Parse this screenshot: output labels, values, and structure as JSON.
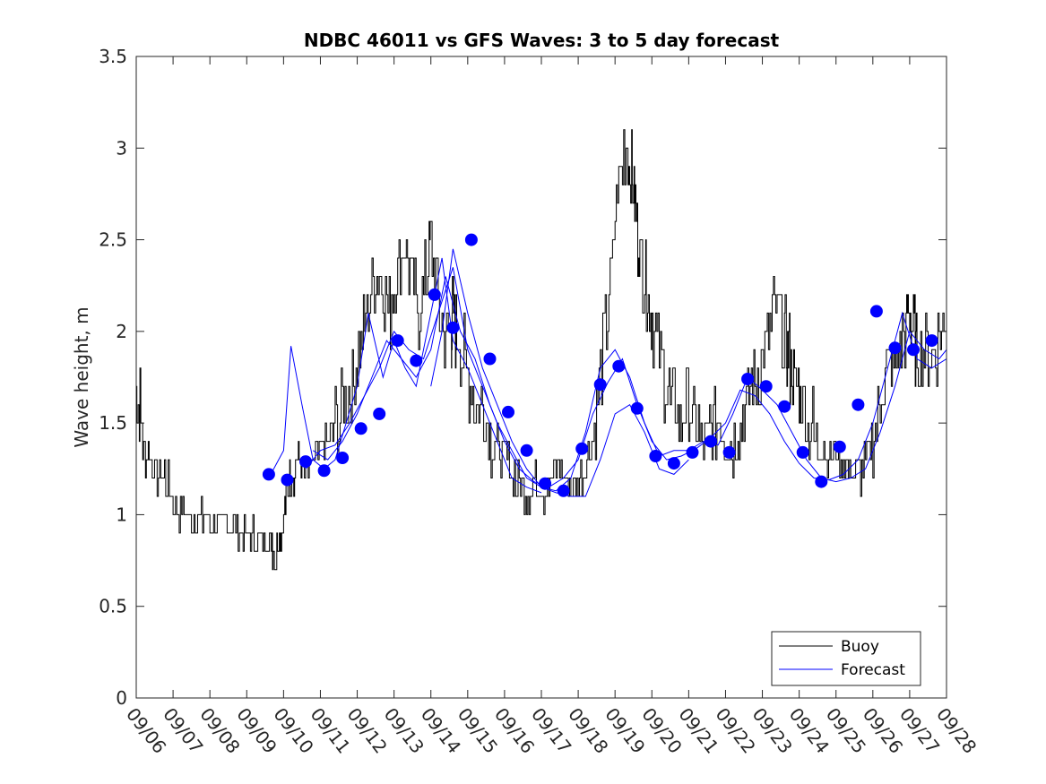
{
  "chart_data": {
    "type": "line",
    "title": "NDBC 46011 vs GFS Waves: 3 to 5 day forecast",
    "xlabel": "",
    "ylabel": "Wave height, m",
    "xlim": [
      0,
      22
    ],
    "ylim": [
      0,
      3.5
    ],
    "yticks": [
      0,
      0.5,
      1,
      1.5,
      2,
      2.5,
      3,
      3.5
    ],
    "ytick_labels": [
      "0",
      "0.5",
      "1",
      "1.5",
      "2",
      "2.5",
      "3",
      "3.5"
    ],
    "xtick_labels": [
      "09/06",
      "09/07",
      "09/08",
      "09/09",
      "09/10",
      "09/11",
      "09/12",
      "09/13",
      "09/14",
      "09/15",
      "09/16",
      "09/17",
      "09/18",
      "09/19",
      "09/20",
      "09/21",
      "09/22",
      "09/23",
      "09/24",
      "09/25",
      "09/26",
      "09/27",
      "09/28"
    ],
    "grid": false,
    "legend": {
      "location": "bottom-right",
      "entries": [
        "Buoy",
        "Forecast"
      ]
    },
    "colors": {
      "buoy": "#000000",
      "forecast": "#0000ff",
      "marker": "#0000ff"
    },
    "buoy": {
      "name": "Buoy",
      "x": [
        0,
        0.1,
        0.25,
        0.4,
        0.6,
        0.8,
        1.0,
        1.2,
        1.4,
        1.6,
        1.8,
        2.0,
        2.2,
        2.4,
        2.6,
        2.8,
        3.0,
        3.2,
        3.4,
        3.6,
        3.7,
        3.8,
        3.9,
        4.0,
        4.1,
        4.2,
        4.35,
        4.5,
        4.7,
        4.9,
        5.1,
        5.3,
        5.5,
        5.7,
        5.9,
        6.1,
        6.3,
        6.5,
        6.7,
        6.9,
        7.1,
        7.3,
        7.5,
        7.7,
        7.9,
        8.0,
        8.2,
        8.4,
        8.55,
        8.6,
        8.7,
        8.9,
        9.1,
        9.3,
        9.5,
        9.7,
        9.9,
        10.1,
        10.3,
        10.5,
        10.7,
        10.9,
        11.1,
        11.3,
        11.5,
        11.7,
        11.9,
        12.1,
        12.3,
        12.5,
        12.7,
        12.9,
        13.1,
        13.3,
        13.45,
        13.55,
        13.65,
        13.8,
        13.9,
        14.0,
        14.2,
        14.4,
        14.6,
        14.8,
        15.0,
        15.2,
        15.4,
        15.6,
        15.8,
        16.0,
        16.2,
        16.4,
        16.6,
        16.8,
        17.0,
        17.2,
        17.4,
        17.6,
        17.7,
        17.8,
        17.95,
        18.1,
        18.3,
        18.5,
        18.7,
        18.9,
        19.1,
        19.3,
        19.5,
        19.7,
        19.9,
        20.1,
        20.3,
        20.5,
        20.7,
        20.9,
        21.0,
        21.1,
        21.2,
        21.4,
        21.6,
        21.8,
        22.0
      ],
      "y": [
        1.7,
        1.6,
        1.3,
        1.3,
        1.2,
        1.2,
        1.1,
        1.0,
        1.0,
        0.95,
        0.95,
        0.95,
        0.9,
        0.95,
        0.95,
        0.9,
        0.9,
        0.85,
        0.85,
        0.85,
        0.85,
        0.75,
        0.9,
        0.95,
        1.1,
        1.2,
        1.25,
        1.25,
        1.2,
        1.3,
        1.35,
        1.4,
        1.5,
        1.6,
        1.7,
        1.9,
        2.1,
        2.3,
        2.3,
        2.1,
        2.3,
        2.5,
        2.2,
        2.1,
        2.3,
        2.5,
        2.2,
        2.0,
        2.0,
        2.1,
        2.0,
        1.9,
        1.7,
        1.6,
        1.55,
        1.4,
        1.35,
        1.3,
        1.2,
        1.15,
        1.1,
        1.2,
        1.15,
        1.2,
        1.3,
        1.2,
        1.1,
        1.2,
        1.3,
        1.5,
        1.9,
        2.2,
        2.8,
        3.0,
        2.9,
        2.7,
        2.5,
        2.3,
        2.2,
        2.1,
        1.9,
        1.7,
        1.6,
        1.5,
        1.6,
        1.5,
        1.4,
        1.45,
        1.5,
        1.45,
        1.4,
        1.5,
        1.6,
        1.7,
        1.8,
        2.0,
        2.1,
        2.0,
        1.9,
        1.8,
        1.7,
        1.6,
        1.5,
        1.4,
        1.35,
        1.3,
        1.3,
        1.25,
        1.2,
        1.2,
        1.3,
        1.5,
        1.7,
        1.8,
        1.85,
        2.0,
        2.1,
        2.0,
        1.9,
        1.85,
        1.9,
        1.95,
        2.0
      ]
    },
    "forecast_series": [
      {
        "name": "Forecast",
        "x": [
          3.6,
          4.0,
          4.2,
          4.5,
          4.8,
          5.1,
          5.4,
          5.7,
          6.0,
          6.3,
          6.7,
          7.0,
          7.3,
          7.6,
          8.0,
          8.3,
          8.6,
          9.0,
          9.4,
          9.8,
          10.2,
          10.6,
          11.0
        ],
        "y": [
          1.2,
          1.35,
          1.92,
          1.6,
          1.3,
          1.25,
          1.3,
          1.5,
          1.7,
          2.1,
          1.75,
          1.95,
          1.8,
          1.7,
          2.1,
          2.4,
          1.95,
          1.8,
          1.6,
          1.4,
          1.2,
          1.15,
          1.12
        ]
      },
      {
        "name": "Forecast",
        "x": [
          4.6,
          5.0,
          5.4,
          5.8,
          6.2,
          6.6,
          7.0,
          7.4,
          7.8,
          8.2,
          8.6,
          9.0,
          9.4,
          9.8,
          10.2,
          10.6,
          11.0,
          11.4,
          11.8,
          12.2,
          12.6,
          13.0,
          13.4,
          13.8,
          14.2,
          14.6,
          15.0,
          15.4,
          15.8,
          16.2,
          16.6,
          17.0,
          17.4,
          17.8,
          18.2,
          18.6,
          19.0,
          19.4,
          19.8,
          20.2,
          20.6,
          21.0,
          21.4,
          21.8,
          22.0
        ],
        "y": [
          1.25,
          1.35,
          1.38,
          1.5,
          1.65,
          1.8,
          2.0,
          1.9,
          1.85,
          2.1,
          2.35,
          1.9,
          1.7,
          1.5,
          1.35,
          1.2,
          1.15,
          1.13,
          1.2,
          1.45,
          1.8,
          1.9,
          1.75,
          1.5,
          1.32,
          1.35,
          1.35,
          1.4,
          1.38,
          1.55,
          1.75,
          1.68,
          1.6,
          1.45,
          1.3,
          1.2,
          1.18,
          1.2,
          1.25,
          1.45,
          1.7,
          2.0,
          1.9,
          1.85,
          1.9
        ]
      },
      {
        "name": "Forecast",
        "x": [
          4.8,
          5.2,
          5.6,
          6.0,
          6.4,
          6.8,
          7.2,
          7.6,
          8.0,
          8.4,
          8.8,
          9.2,
          9.6,
          10.0,
          10.4,
          10.8,
          11.2,
          11.6,
          12.0,
          12.4,
          12.8,
          13.2,
          13.6,
          14.0,
          14.4,
          14.8,
          15.2,
          15.6,
          16.0,
          16.4,
          16.8,
          17.2,
          17.6,
          18.0,
          18.4,
          18.8,
          19.2,
          19.6,
          20.0,
          20.4,
          20.8,
          21.2,
          21.6,
          22.0
        ],
        "y": [
          1.35,
          1.3,
          1.4,
          1.55,
          1.75,
          1.95,
          1.85,
          1.75,
          1.9,
          2.3,
          2.0,
          1.85,
          1.6,
          1.4,
          1.25,
          1.18,
          1.15,
          1.2,
          1.3,
          1.55,
          1.72,
          1.85,
          1.6,
          1.4,
          1.3,
          1.32,
          1.36,
          1.42,
          1.5,
          1.68,
          1.65,
          1.55,
          1.4,
          1.28,
          1.2,
          1.19,
          1.22,
          1.3,
          1.5,
          1.8,
          2.1,
          1.85,
          1.8,
          1.85
        ]
      },
      {
        "name": "Forecast",
        "x": [
          8.0,
          8.3,
          8.6,
          9.0,
          9.4,
          9.8,
          10.2,
          10.6,
          11.0,
          11.4,
          11.8,
          12.2,
          12.6,
          13.0,
          13.4,
          13.8,
          14.2,
          14.6,
          15.0
        ],
        "y": [
          1.7,
          2.0,
          2.45,
          2.1,
          1.8,
          1.6,
          1.4,
          1.25,
          1.15,
          1.12,
          1.1,
          1.1,
          1.3,
          1.55,
          1.6,
          1.45,
          1.25,
          1.22,
          1.3
        ]
      }
    ],
    "forecast_markers": {
      "x": [
        3.6,
        4.1,
        4.6,
        5.1,
        5.6,
        6.1,
        6.6,
        7.1,
        7.6,
        8.1,
        8.6,
        9.1,
        9.6,
        10.1,
        10.6,
        11.1,
        11.6,
        12.1,
        12.6,
        13.1,
        13.6,
        14.1,
        14.6,
        15.1,
        15.6,
        16.1,
        16.6,
        17.1,
        17.6,
        18.1,
        18.6,
        19.1,
        19.6,
        20.1,
        20.6,
        21.1,
        21.6
      ],
      "y": [
        1.22,
        1.19,
        1.29,
        1.24,
        1.31,
        1.47,
        1.55,
        1.95,
        1.84,
        2.2,
        2.02,
        2.5,
        1.85,
        1.56,
        1.35,
        1.17,
        1.13,
        1.36,
        1.71,
        1.81,
        1.58,
        1.32,
        1.28,
        1.34,
        1.4,
        1.34,
        1.74,
        1.7,
        1.59,
        1.34,
        1.18,
        1.37,
        1.6,
        2.11,
        1.91,
        1.9,
        1.95
      ]
    }
  }
}
